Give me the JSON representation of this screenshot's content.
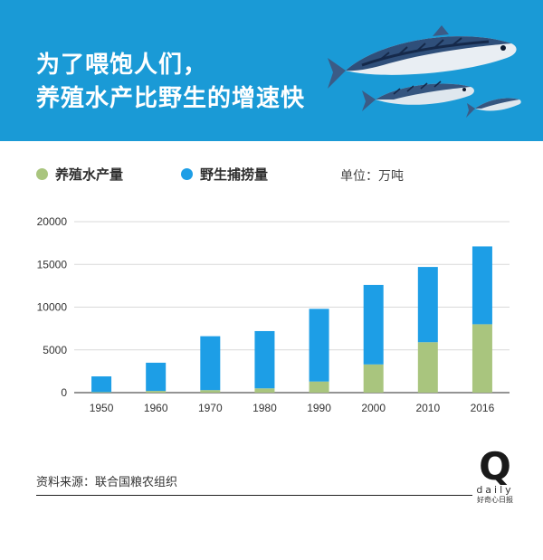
{
  "header": {
    "title_line1": "为了喂饱人们，",
    "title_line2": "养殖水产比野生的增速快"
  },
  "legend": {
    "aquaculture": "养殖水产量",
    "wild": "野生捕捞量",
    "unit": "单位：万吨"
  },
  "colors": {
    "banner": "#1a9ad6",
    "aquaculture": "#a9c57e",
    "wild": "#1d9ee6"
  },
  "chart_data": {
    "type": "bar",
    "stacked": true,
    "categories": [
      "1950",
      "1960",
      "1970",
      "1980",
      "1990",
      "2000",
      "2010",
      "2016"
    ],
    "series": [
      {
        "name": "养殖水产量",
        "values": [
          60,
          200,
          300,
          500,
          1300,
          3300,
          5900,
          8000
        ]
      },
      {
        "name": "野生捕捞量",
        "values": [
          1840,
          3300,
          6300,
          6700,
          8500,
          9300,
          8800,
          9100
        ]
      }
    ],
    "yticks": [
      "0",
      "5000",
      "10000",
      "15000",
      "20000"
    ],
    "ylim": [
      0,
      20000
    ],
    "grid": true
  },
  "footer": {
    "source": "资料来源：联合国粮农组织",
    "brand_q": "Q",
    "brand_daily": "daily",
    "brand_sub": "好奇心日报"
  }
}
